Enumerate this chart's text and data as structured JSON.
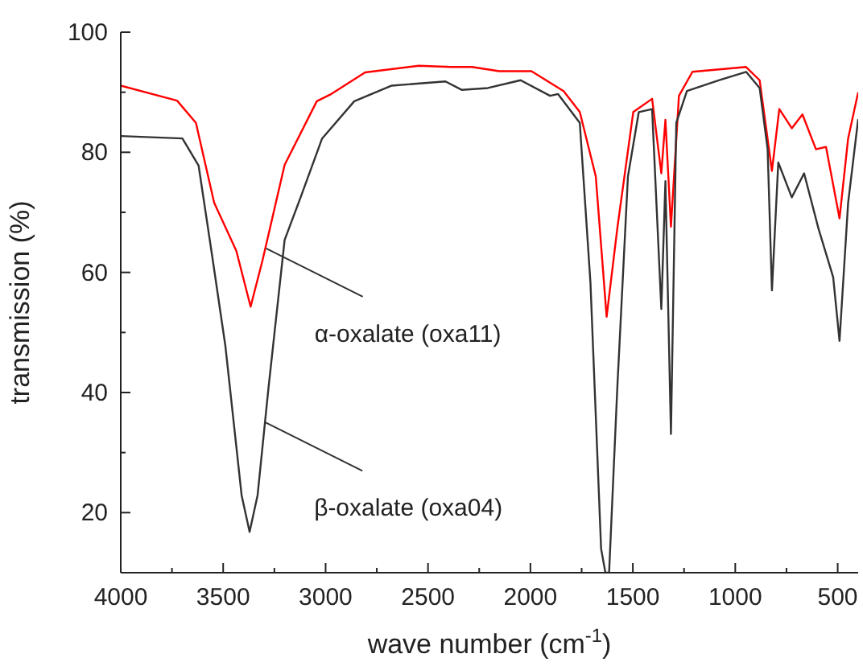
{
  "chart_data": {
    "type": "line",
    "xlabel": "wave number (cm$^{-1}$)",
    "ylabel": "transmission (%)",
    "xlim": [
      4000,
      400
    ],
    "ylim": [
      10,
      100
    ],
    "xticks": [
      4000,
      {
        "value": 3750,
        "label": null
      },
      3500,
      {
        "value": 3250,
        "label": null
      },
      3000,
      {
        "value": 2750,
        "label": null
      },
      2500,
      {
        "value": 2250,
        "label": null
      },
      2000,
      {
        "value": 1750,
        "label": null
      },
      1500,
      {
        "value": 1250,
        "label": null
      },
      1000,
      {
        "value": 750,
        "label": null
      },
      500
    ],
    "yticks": [
      {
        "value": 10,
        "label": null
      },
      20,
      {
        "value": 30,
        "label": null
      },
      40,
      {
        "value": 50,
        "label": null
      },
      60,
      {
        "value": 70,
        "label": null
      },
      80,
      {
        "value": 90,
        "label": null
      },
      100
    ],
    "marker": "none",
    "line_style": "solid",
    "series": [
      {
        "color": "#ff0000",
        "x": [
          4000,
          3725,
          3633,
          3544,
          3436,
          3366,
          3308,
          3200,
          3043,
          2978,
          2807,
          2545,
          2388,
          2286,
          2152,
          1995,
          1838,
          1759,
          1681,
          1628,
          1576,
          1498,
          1406,
          1361,
          1341,
          1314,
          1275,
          1209,
          947,
          881,
          821,
          785,
          724,
          672,
          606,
          557,
          491,
          449,
          400
        ],
        "values": [
          91.1,
          88.6,
          84.9,
          71.6,
          63.6,
          54.3,
          62,
          77.9,
          88.5,
          89.6,
          93.3,
          94.4,
          94.2,
          94.2,
          93.5,
          93.5,
          90.2,
          86.7,
          76,
          52.6,
          67.3,
          86.7,
          88.9,
          76.5,
          85.4,
          67.6,
          89.4,
          93.4,
          94.2,
          92,
          76.9,
          87.2,
          84,
          86.3,
          80.5,
          80.9,
          69,
          82.3,
          90
        ]
      },
      {
        "color": "#333333",
        "x": [
          4000,
          3699,
          3620,
          3554,
          3489,
          3410,
          3371,
          3332,
          3279,
          3200,
          3122,
          3017,
          2860,
          2677,
          2415,
          2336,
          2208,
          2048,
          1904,
          1865,
          1759,
          1707,
          1655,
          1634,
          1616,
          1576,
          1524,
          1471,
          1406,
          1361,
          1341,
          1314,
          1288,
          1236,
          1078,
          947,
          881,
          842,
          821,
          790,
          724,
          664,
          593,
          522,
          491,
          449,
          400
        ],
        "values": [
          82.7,
          82.3,
          77.8,
          62.8,
          47.7,
          22.9,
          16.8,
          22.9,
          40.7,
          65.4,
          72.5,
          82.3,
          88.5,
          91.1,
          91.8,
          90.4,
          90.7,
          92,
          89.4,
          89.7,
          84.9,
          58.3,
          14,
          10,
          10,
          40.7,
          76,
          86.7,
          87.2,
          53.9,
          75.2,
          33.1,
          84.9,
          90.2,
          92,
          93.4,
          90.7,
          80.5,
          57,
          78.3,
          72.5,
          76.5,
          67.2,
          59.2,
          48.6,
          71.6,
          85.5
        ]
      }
    ],
    "annotations": [
      {
        "text": "α-oxalate (oxa11)",
        "x": 3290,
        "y": 64
      },
      {
        "text": "β-oxalate (oxa04)",
        "x": 3292,
        "y": 35
      }
    ]
  }
}
